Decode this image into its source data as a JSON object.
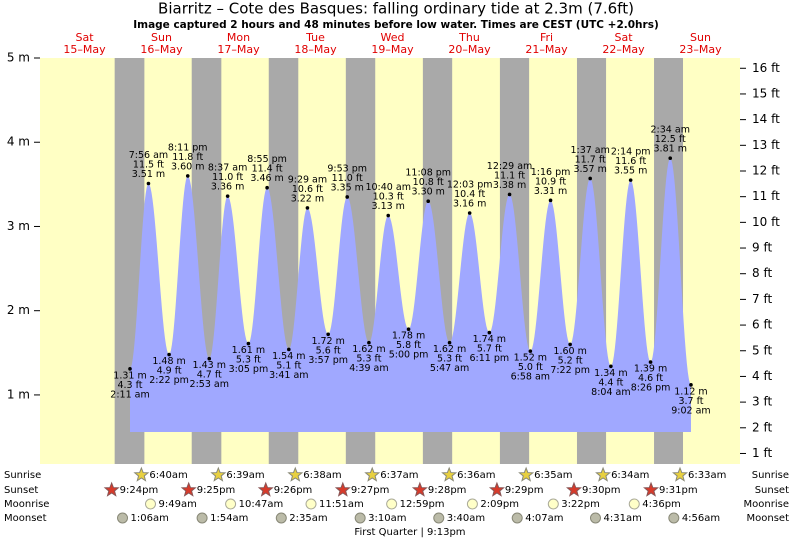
{
  "chart_data": {
    "type": "tide",
    "title": "Biarritz – Cote des Basques: falling  ordinary tide at 2.3m (7.6ft)",
    "subtitle": "Image captured 2 hours and 48 minutes before low water. Times are CEST (UTC +2.0hrs)",
    "ylim": [
      0.18,
      5
    ],
    "yticks": [
      {
        "value": 1,
        "label": "1 m"
      },
      {
        "value": 2,
        "label": "2 m"
      },
      {
        "value": 3,
        "label": "3 m"
      },
      {
        "value": 4,
        "label": "4 m"
      },
      {
        "value": 5,
        "label": "5 m"
      }
    ],
    "y2lim": [
      0.59,
      16.4
    ],
    "y2ticks": [
      {
        "value": 1,
        "label": "1 ft"
      },
      {
        "value": 2,
        "label": "2 ft"
      },
      {
        "value": 3,
        "label": "3 ft"
      },
      {
        "value": 4,
        "label": "4 ft"
      },
      {
        "value": 5,
        "label": "5 ft"
      },
      {
        "value": 6,
        "label": "6 ft"
      },
      {
        "value": 7,
        "label": "7 ft"
      },
      {
        "value": 8,
        "label": "8 ft"
      },
      {
        "value": 9,
        "label": "9 ft"
      },
      {
        "value": 10,
        "label": "10 ft"
      },
      {
        "value": 11,
        "label": "11 ft"
      },
      {
        "value": 12,
        "label": "12 ft"
      },
      {
        "value": 13,
        "label": "13 ft"
      },
      {
        "value": 14,
        "label": "14 ft"
      },
      {
        "value": 15,
        "label": "15 ft"
      },
      {
        "value": 16,
        "label": "16 ft"
      }
    ],
    "color": "#a0a8ff",
    "row_labels": {
      "sunrise": "Sunrise",
      "sunset": "Sunset",
      "moonrise": "Moonrise",
      "moonset": "Moonset"
    },
    "moon_phase": "First Quarter | 9:13pm",
    "days": [
      {
        "weekday": "Sat",
        "date": "15–May",
        "sunset": "9:24pm",
        "tides": []
      },
      {
        "weekday": "Sun",
        "date": "16–May",
        "sunrise": "6:40am",
        "sunset": "9:25pm",
        "moonrise": "9:49am",
        "moonset": "1:06am",
        "tides": [
          {
            "type": "low",
            "time": "2:11 am",
            "m": {
              "value": 1.31,
              "label": "1.31 m"
            },
            "ft": {
              "value": 4.3,
              "label": "4.3 ft"
            }
          },
          {
            "type": "high",
            "time": "7:56 am",
            "m": {
              "value": 3.51,
              "label": "3.51 m"
            },
            "ft": {
              "value": 11.5,
              "label": "11.5 ft"
            }
          },
          {
            "type": "low",
            "time": "2:22 pm",
            "m": {
              "value": 1.48,
              "label": "1.48 m"
            },
            "ft": {
              "value": 4.9,
              "label": "4.9 ft"
            }
          },
          {
            "type": "high",
            "time": "8:11 pm",
            "m": {
              "value": 3.6,
              "label": "3.60 m"
            },
            "ft": {
              "value": 11.8,
              "label": "11.8 ft"
            }
          }
        ]
      },
      {
        "weekday": "Mon",
        "date": "17–May",
        "sunrise": "6:39am",
        "sunset": "9:26pm",
        "moonrise": "10:47am",
        "moonset": "1:54am",
        "tides": [
          {
            "type": "low",
            "time": "2:53 am",
            "m": {
              "value": 1.43,
              "label": "1.43 m"
            },
            "ft": {
              "value": 4.7,
              "label": "4.7 ft"
            }
          },
          {
            "type": "high",
            "time": "8:37 am",
            "m": {
              "value": 3.36,
              "label": "3.36 m"
            },
            "ft": {
              "value": 11.0,
              "label": "11.0 ft"
            }
          },
          {
            "type": "low",
            "time": "3:05 pm",
            "m": {
              "value": 1.61,
              "label": "1.61 m"
            },
            "ft": {
              "value": 5.3,
              "label": "5.3 ft"
            }
          },
          {
            "type": "high",
            "time": "8:55 pm",
            "m": {
              "value": 3.46,
              "label": "3.46 m"
            },
            "ft": {
              "value": 11.4,
              "label": "11.4 ft"
            }
          }
        ]
      },
      {
        "weekday": "Tue",
        "date": "18–May",
        "sunrise": "6:38am",
        "sunset": "9:27pm",
        "moonrise": "11:51am",
        "moonset": "2:35am",
        "tides": [
          {
            "type": "low",
            "time": "3:41 am",
            "m": {
              "value": 1.54,
              "label": "1.54 m"
            },
            "ft": {
              "value": 5.1,
              "label": "5.1 ft"
            }
          },
          {
            "type": "high",
            "time": "9:29 am",
            "m": {
              "value": 3.22,
              "label": "3.22 m"
            },
            "ft": {
              "value": 10.6,
              "label": "10.6 ft"
            }
          },
          {
            "type": "low",
            "time": "3:57 pm",
            "m": {
              "value": 1.72,
              "label": "1.72 m"
            },
            "ft": {
              "value": 5.6,
              "label": "5.6 ft"
            }
          },
          {
            "type": "high",
            "time": "9:53 pm",
            "m": {
              "value": 3.35,
              "label": "3.35 m"
            },
            "ft": {
              "value": 11.0,
              "label": "11.0 ft"
            }
          }
        ]
      },
      {
        "weekday": "Wed",
        "date": "19–May",
        "sunrise": "6:37am",
        "sunset": "9:28pm",
        "moonrise": "12:59pm",
        "moonset": "3:10am",
        "tides": [
          {
            "type": "low",
            "time": "4:39 am",
            "m": {
              "value": 1.62,
              "label": "1.62 m"
            },
            "ft": {
              "value": 5.3,
              "label": "5.3 ft"
            }
          },
          {
            "type": "high",
            "time": "10:40 am",
            "m": {
              "value": 3.13,
              "label": "3.13 m"
            },
            "ft": {
              "value": 10.3,
              "label": "10.3 ft"
            }
          },
          {
            "type": "low",
            "time": "5:00 pm",
            "m": {
              "value": 1.78,
              "label": "1.78 m"
            },
            "ft": {
              "value": 5.8,
              "label": "5.8 ft"
            }
          },
          {
            "type": "high",
            "time": "11:08 pm",
            "m": {
              "value": 3.3,
              "label": "3.30 m"
            },
            "ft": {
              "value": 10.8,
              "label": "10.8 ft"
            }
          }
        ]
      },
      {
        "weekday": "Thu",
        "date": "20–May",
        "sunrise": "6:36am",
        "sunset": "9:29pm",
        "moonrise": "2:09pm",
        "moonset": "3:40am",
        "tides": [
          {
            "type": "low",
            "time": "5:47 am",
            "m": {
              "value": 1.62,
              "label": "1.62 m"
            },
            "ft": {
              "value": 5.3,
              "label": "5.3 ft"
            }
          },
          {
            "type": "high",
            "time": "12:03 pm",
            "m": {
              "value": 3.16,
              "label": "3.16 m"
            },
            "ft": {
              "value": 10.4,
              "label": "10.4 ft"
            }
          },
          {
            "type": "low",
            "time": "6:11 pm",
            "m": {
              "value": 1.74,
              "label": "1.74 m"
            },
            "ft": {
              "value": 5.7,
              "label": "5.7 ft"
            }
          }
        ]
      },
      {
        "weekday": "Fri",
        "date": "21–May",
        "sunrise": "6:35am",
        "sunset": "9:30pm",
        "moonrise": "3:22pm",
        "moonset": "4:07am",
        "tides": [
          {
            "type": "high",
            "time": "12:29 am",
            "m": {
              "value": 3.38,
              "label": "3.38 m"
            },
            "ft": {
              "value": 11.1,
              "label": "11.1 ft"
            }
          },
          {
            "type": "low",
            "time": "6:58 am",
            "m": {
              "value": 1.52,
              "label": "1.52 m"
            },
            "ft": {
              "value": 5.0,
              "label": "5.0 ft"
            }
          },
          {
            "type": "high",
            "time": "1:16 pm",
            "m": {
              "value": 3.31,
              "label": "3.31 m"
            },
            "ft": {
              "value": 10.9,
              "label": "10.9 ft"
            }
          },
          {
            "type": "low",
            "time": "7:22 pm",
            "m": {
              "value": 1.6,
              "label": "1.60 m"
            },
            "ft": {
              "value": 5.2,
              "label": "5.2 ft"
            }
          }
        ]
      },
      {
        "weekday": "Sat",
        "date": "22–May",
        "sunrise": "6:34am",
        "sunset": "9:31pm",
        "moonrise": "4:36pm",
        "moonset": "4:31am",
        "tides": [
          {
            "type": "high",
            "time": "1:37 am",
            "m": {
              "value": 3.57,
              "label": "3.57 m"
            },
            "ft": {
              "value": 11.7,
              "label": "11.7 ft"
            }
          },
          {
            "type": "low",
            "time": "8:04 am",
            "m": {
              "value": 1.34,
              "label": "1.34 m"
            },
            "ft": {
              "value": 4.4,
              "label": "4.4 ft"
            }
          },
          {
            "type": "high",
            "time": "2:14 pm",
            "m": {
              "value": 3.55,
              "label": "3.55 m"
            },
            "ft": {
              "value": 11.6,
              "label": "11.6 ft"
            }
          },
          {
            "type": "low",
            "time": "8:26 pm",
            "m": {
              "value": 1.39,
              "label": "1.39 m"
            },
            "ft": {
              "value": 4.6,
              "label": "4.6 ft"
            }
          }
        ]
      },
      {
        "weekday": "Sun",
        "date": "23–May",
        "sunrise": "6:33am",
        "moonset": "4:56am",
        "tides": [
          {
            "type": "high",
            "time": "2:34 am",
            "m": {
              "value": 3.81,
              "label": "3.81 m"
            },
            "ft": {
              "value": 12.5,
              "label": "12.5 ft"
            }
          },
          {
            "type": "low",
            "time": "9:02 am",
            "m": {
              "value": 1.12,
              "label": "1.12 m"
            },
            "ft": {
              "value": 3.7,
              "label": "3.7 ft"
            }
          }
        ]
      }
    ]
  }
}
